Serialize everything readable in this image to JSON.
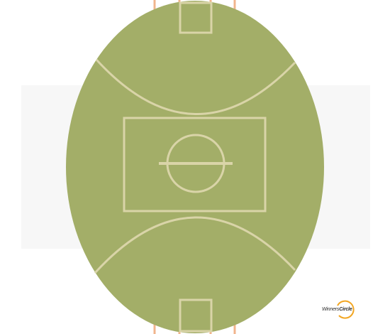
{
  "field": {
    "grass_color": "#a3ae68",
    "line_color": "#d9d4a8",
    "post_color": "#f1b48c"
  },
  "logo": {
    "text_regular": "Winners",
    "text_bold": "Circle",
    "ring_color": "#f2a623"
  }
}
